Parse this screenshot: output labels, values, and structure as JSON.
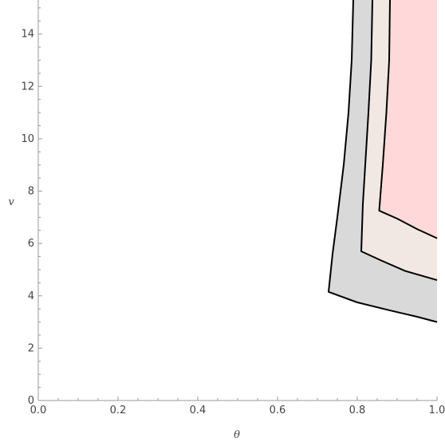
{
  "chart_data": {
    "type": "area",
    "title": "",
    "xlabel": "θ",
    "ylabel": "v",
    "xlim": [
      0.0,
      1.0
    ],
    "ylim": [
      0,
      15.3
    ],
    "grid": false,
    "x_ticks": [
      "0.0",
      "0.2",
      "0.4",
      "0.6",
      "0.8",
      "1.0"
    ],
    "y_ticks": [
      "0",
      "2",
      "4",
      "6",
      "8",
      "10",
      "12",
      "14"
    ],
    "regions": [
      {
        "fill": "#d9d9d9",
        "boundary": [
          [
            0.79,
            15.3
          ],
          [
            0.786,
            13.0
          ],
          [
            0.778,
            11.0
          ],
          [
            0.766,
            9.0
          ],
          [
            0.75,
            7.0
          ],
          [
            0.738,
            5.6
          ],
          [
            0.728,
            4.15
          ],
          [
            0.8,
            3.75
          ],
          [
            0.88,
            3.45
          ],
          [
            0.95,
            3.2
          ],
          [
            1.0,
            3.0
          ],
          [
            1.0,
            15.3
          ]
        ]
      },
      {
        "fill": "#f1e8e3",
        "boundary": [
          [
            0.838,
            15.3
          ],
          [
            0.835,
            13.0
          ],
          [
            0.828,
            11.0
          ],
          [
            0.82,
            9.0
          ],
          [
            0.814,
            7.5
          ],
          [
            0.81,
            5.7
          ],
          [
            0.86,
            5.35
          ],
          [
            0.92,
            4.95
          ],
          [
            1.0,
            4.6
          ],
          [
            1.0,
            15.3
          ]
        ]
      },
      {
        "fill": "#ffd9da",
        "boundary": [
          [
            0.882,
            15.3
          ],
          [
            0.88,
            13.0
          ],
          [
            0.873,
            11.0
          ],
          [
            0.864,
            9.0
          ],
          [
            0.855,
            7.25
          ],
          [
            0.9,
            6.95
          ],
          [
            0.95,
            6.55
          ],
          [
            1.0,
            6.2
          ],
          [
            1.0,
            15.3
          ]
        ]
      }
    ]
  }
}
